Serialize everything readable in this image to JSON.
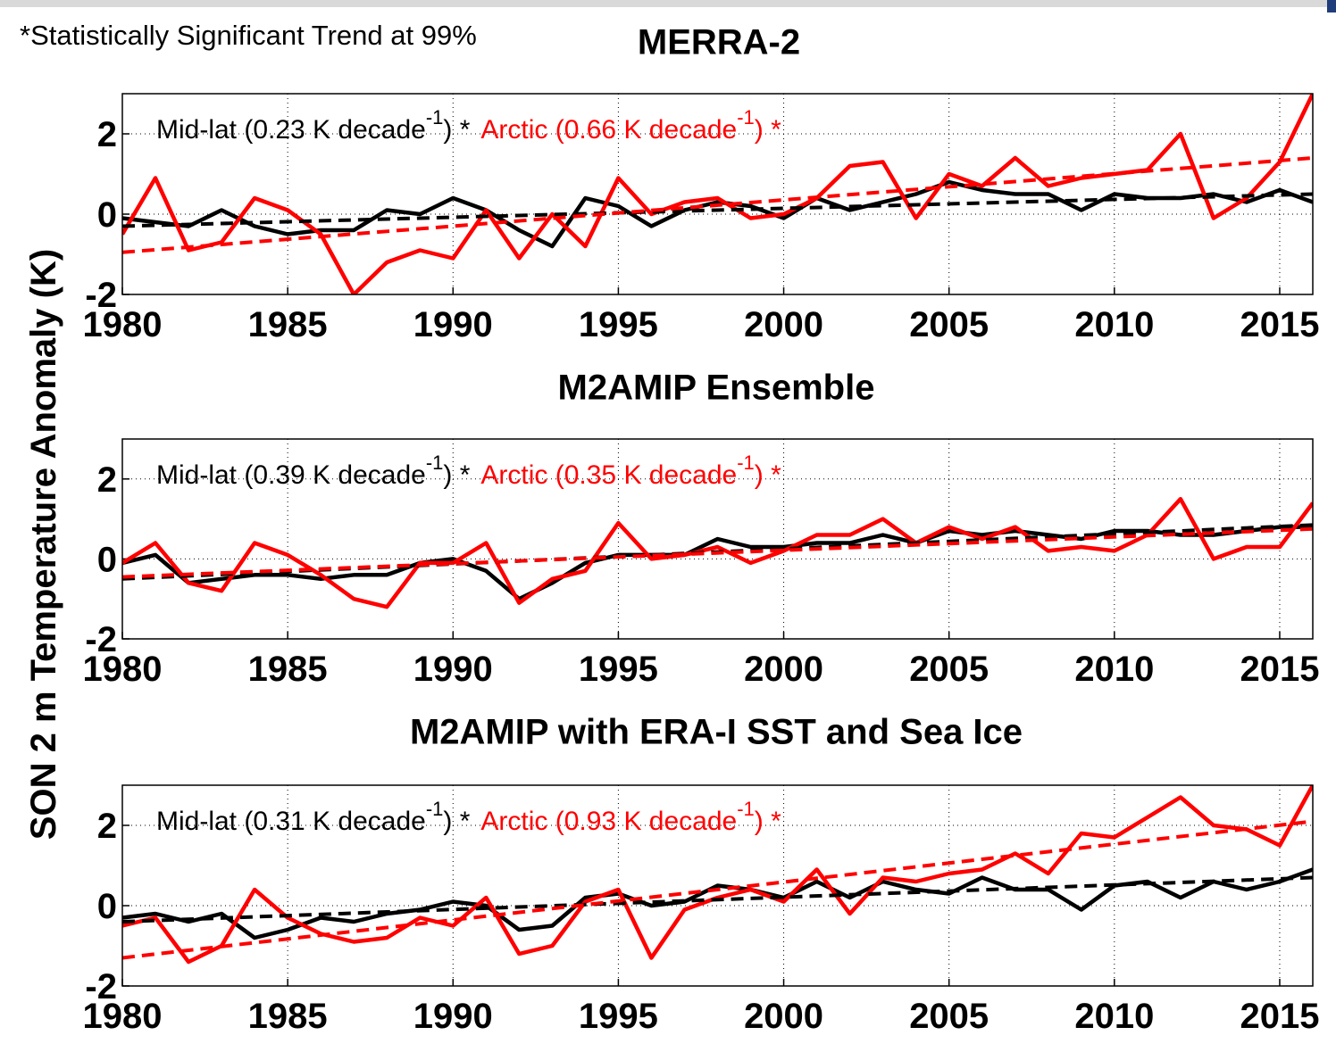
{
  "note": "*Statistically Significant Trend at 99%",
  "ylabel": "SON 2 m Temperature Anomaly (K)",
  "chart_data": [
    {
      "type": "line",
      "title": "MERRA-2",
      "x": [
        1980,
        1981,
        1982,
        1983,
        1984,
        1985,
        1986,
        1987,
        1988,
        1989,
        1990,
        1991,
        1992,
        1993,
        1994,
        1995,
        1996,
        1997,
        1998,
        1999,
        2000,
        2001,
        2002,
        2003,
        2004,
        2005,
        2006,
        2007,
        2008,
        2009,
        2010,
        2011,
        2012,
        2013,
        2014,
        2015,
        2016
      ],
      "xlim": [
        1980,
        2016
      ],
      "xticks": [
        1980,
        1985,
        1990,
        1995,
        2000,
        2005,
        2010,
        2015
      ],
      "ylim": [
        -2,
        3
      ],
      "yticks": [
        -2,
        0,
        2
      ],
      "grid": true,
      "series": [
        {
          "name": "Mid-lat (0.23 K decade",
          "superscript": "-1",
          "suffix": ") *",
          "color": "#000000",
          "values": [
            -0.1,
            -0.2,
            -0.3,
            0.1,
            -0.3,
            -0.5,
            -0.4,
            -0.4,
            0.1,
            0.0,
            0.4,
            0.1,
            -0.4,
            -0.8,
            0.4,
            0.2,
            -0.3,
            0.1,
            0.3,
            0.2,
            -0.1,
            0.4,
            0.1,
            0.3,
            0.5,
            0.8,
            0.6,
            0.5,
            0.5,
            0.1,
            0.5,
            0.4,
            0.4,
            0.5,
            0.3,
            0.6,
            0.3
          ]
        },
        {
          "name": "Arctic (0.66 K decade",
          "superscript": "-1",
          "suffix": ") *",
          "color": "#ff0000",
          "values": [
            -0.5,
            0.9,
            -0.9,
            -0.7,
            0.4,
            0.1,
            -0.5,
            -2.0,
            -1.2,
            -0.9,
            -1.1,
            0.1,
            -1.1,
            0.0,
            -0.8,
            0.9,
            0.0,
            0.3,
            0.4,
            -0.1,
            0.0,
            0.4,
            1.2,
            1.3,
            -0.1,
            1.0,
            0.7,
            1.4,
            0.7,
            0.9,
            1.0,
            1.1,
            2.0,
            -0.1,
            0.4,
            1.3,
            3.0
          ]
        },
        {
          "color": "#000000",
          "dashed": true,
          "x": [
            1980,
            2016
          ],
          "values": [
            -0.3,
            0.5
          ]
        },
        {
          "color": "#ff0000",
          "dashed": true,
          "x": [
            1980,
            2016
          ],
          "values": [
            -0.95,
            1.4
          ]
        }
      ]
    },
    {
      "type": "line",
      "title": "M2AMIP Ensemble",
      "x": [
        1980,
        1981,
        1982,
        1983,
        1984,
        1985,
        1986,
        1987,
        1988,
        1989,
        1990,
        1991,
        1992,
        1993,
        1994,
        1995,
        1996,
        1997,
        1998,
        1999,
        2000,
        2001,
        2002,
        2003,
        2004,
        2005,
        2006,
        2007,
        2008,
        2009,
        2010,
        2011,
        2012,
        2013,
        2014,
        2015,
        2016
      ],
      "xlim": [
        1980,
        2016
      ],
      "xticks": [
        1980,
        1985,
        1990,
        1995,
        2000,
        2005,
        2010,
        2015
      ],
      "ylim": [
        -2,
        3
      ],
      "yticks": [
        -2,
        0,
        2
      ],
      "grid": true,
      "series": [
        {
          "name": "Mid-lat (0.39 K decade",
          "superscript": "-1",
          "suffix": ") *",
          "color": "#000000",
          "values": [
            -0.1,
            0.1,
            -0.6,
            -0.5,
            -0.4,
            -0.4,
            -0.5,
            -0.4,
            -0.4,
            -0.1,
            0.0,
            -0.3,
            -1.0,
            -0.6,
            -0.1,
            0.1,
            0.1,
            0.1,
            0.5,
            0.3,
            0.3,
            0.4,
            0.4,
            0.6,
            0.4,
            0.7,
            0.6,
            0.7,
            0.6,
            0.5,
            0.7,
            0.7,
            0.6,
            0.6,
            0.7,
            0.8,
            0.8
          ]
        },
        {
          "name": "Arctic (0.35 K decade",
          "superscript": "-1",
          "suffix": ") *",
          "color": "#ff0000",
          "values": [
            -0.1,
            0.4,
            -0.6,
            -0.8,
            0.4,
            0.1,
            -0.4,
            -1.0,
            -1.2,
            -0.1,
            -0.1,
            0.4,
            -1.1,
            -0.5,
            -0.3,
            0.9,
            0.0,
            0.1,
            0.3,
            -0.1,
            0.2,
            0.6,
            0.6,
            1.0,
            0.4,
            0.8,
            0.5,
            0.8,
            0.2,
            0.3,
            0.2,
            0.6,
            1.5,
            0.0,
            0.3,
            0.3,
            1.4
          ]
        },
        {
          "color": "#000000",
          "dashed": true,
          "x": [
            1980,
            2016
          ],
          "values": [
            -0.5,
            0.85
          ]
        },
        {
          "color": "#ff0000",
          "dashed": true,
          "x": [
            1980,
            2016
          ],
          "values": [
            -0.45,
            0.75
          ]
        }
      ]
    },
    {
      "type": "line",
      "title": "M2AMIP with ERA-I SST and Sea Ice",
      "x": [
        1980,
        1981,
        1982,
        1983,
        1984,
        1985,
        1986,
        1987,
        1988,
        1989,
        1990,
        1991,
        1992,
        1993,
        1994,
        1995,
        1996,
        1997,
        1998,
        1999,
        2000,
        2001,
        2002,
        2003,
        2004,
        2005,
        2006,
        2007,
        2008,
        2009,
        2010,
        2011,
        2012,
        2013,
        2014,
        2015,
        2016
      ],
      "xlim": [
        1980,
        2016
      ],
      "xticks": [
        1980,
        1985,
        1990,
        1995,
        2000,
        2005,
        2010,
        2015
      ],
      "ylim": [
        -2,
        3
      ],
      "yticks": [
        -2,
        0,
        2
      ],
      "grid": true,
      "series": [
        {
          "name": "Mid-lat (0.31 K decade",
          "superscript": "-1",
          "suffix": ") *",
          "color": "#000000",
          "values": [
            -0.3,
            -0.2,
            -0.4,
            -0.2,
            -0.8,
            -0.6,
            -0.3,
            -0.4,
            -0.2,
            -0.1,
            0.1,
            0.0,
            -0.6,
            -0.5,
            0.2,
            0.3,
            0.0,
            0.1,
            0.5,
            0.4,
            0.2,
            0.6,
            0.2,
            0.6,
            0.4,
            0.3,
            0.7,
            0.4,
            0.4,
            -0.1,
            0.5,
            0.6,
            0.2,
            0.6,
            0.4,
            0.6,
            0.9
          ]
        },
        {
          "name": "Arctic (0.93 K decade",
          "superscript": "-1",
          "suffix": ") *",
          "color": "#ff0000",
          "values": [
            -0.5,
            -0.3,
            -1.4,
            -1.0,
            0.4,
            -0.3,
            -0.7,
            -0.9,
            -0.8,
            -0.3,
            -0.5,
            0.2,
            -1.2,
            -1.0,
            0.1,
            0.4,
            -1.3,
            -0.1,
            0.2,
            0.4,
            0.1,
            0.9,
            -0.2,
            0.7,
            0.6,
            0.8,
            0.9,
            1.3,
            0.8,
            1.8,
            1.7,
            2.2,
            2.7,
            2.0,
            1.9,
            1.5,
            3.0
          ]
        },
        {
          "color": "#000000",
          "dashed": true,
          "x": [
            1980,
            2016
          ],
          "values": [
            -0.4,
            0.7
          ]
        },
        {
          "color": "#ff0000",
          "dashed": true,
          "x": [
            1980,
            2016
          ],
          "values": [
            -1.3,
            2.1
          ]
        }
      ]
    }
  ]
}
